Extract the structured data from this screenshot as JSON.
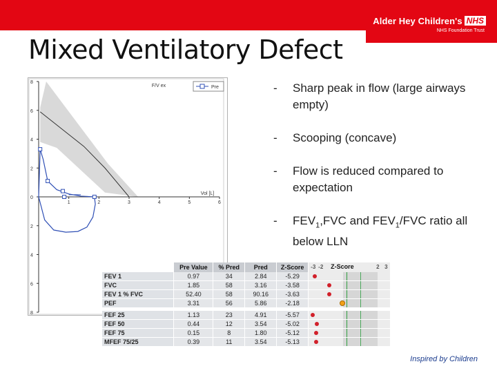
{
  "header": {
    "org_name": "Alder Hey Children's",
    "nhs_badge": "NHS",
    "org_sub": "NHS Foundation Trust"
  },
  "slide": {
    "title": "Mixed Ventilatory Defect"
  },
  "chart_data": {
    "type": "line",
    "title": "F/V ex",
    "xlabel": "Vol [L]",
    "legend": [
      "Pre"
    ],
    "xlim": [
      0,
      6
    ],
    "ylim": [
      -8,
      8
    ],
    "x_ticks": [
      "1",
      "2",
      "3",
      "4",
      "5",
      "6"
    ],
    "y_ticks": [
      "8",
      "6",
      "4",
      "2",
      "0",
      "2",
      "4",
      "6",
      "8"
    ],
    "series": [
      {
        "name": "Pre",
        "x": [
          0,
          0.05,
          0.15,
          0.3,
          0.6,
          1.0,
          1.4,
          1.85
        ],
        "y": [
          0,
          3.3,
          2.6,
          1.1,
          0.5,
          0.2,
          0.05,
          0
        ]
      }
    ]
  },
  "bullets": [
    {
      "dash": "-",
      "text": "Sharp peak in flow (large airways empty)"
    },
    {
      "dash": "-",
      "text": "Scooping (concave)"
    },
    {
      "dash": "-",
      "text": "Flow is reduced compared to expectation"
    },
    {
      "dash": "-",
      "text_a": "FEV",
      "sub_a": "1",
      "text_b": ",FVC and FEV",
      "sub_b": "1",
      "text_c": "/FVC ratio all below LLN"
    }
  ],
  "results": {
    "headers": [
      "",
      "Pre Value",
      "% Pred",
      "Pred",
      "Z-Score",
      "Z-Score"
    ],
    "z_ticks": [
      "-3",
      "-2",
      "2",
      "3"
    ],
    "group1": [
      {
        "name": "FEV 1",
        "pre": "0.97",
        "pct": "34",
        "pred": "2.84",
        "z": "-5.29",
        "zval": -5.29
      },
      {
        "name": "FVC",
        "pre": "1.85",
        "pct": "58",
        "pred": "3.16",
        "z": "-3.58",
        "zval": -3.58
      },
      {
        "name": "FEV 1 % FVC",
        "pre": "52.40",
        "pct": "58",
        "pred": "90.16",
        "z": "-3.63",
        "zval": -3.63
      },
      {
        "name": "PEF",
        "pre": "3.31",
        "pct": "56",
        "pred": "5.86",
        "z": "-2.18",
        "zval": -2.18
      }
    ],
    "group2": [
      {
        "name": "FEF 25",
        "pre": "1.13",
        "pct": "23",
        "pred": "4.91",
        "z": "-5.57",
        "zval": -5.57
      },
      {
        "name": "FEF 50",
        "pre": "0.44",
        "pct": "12",
        "pred": "3.54",
        "z": "-5.02",
        "zval": -5.02
      },
      {
        "name": "FEF 75",
        "pre": "0.15",
        "pct": "8",
        "pred": "1.80",
        "z": "-5.12",
        "zval": -5.12
      },
      {
        "name": "MFEF 75/25",
        "pre": "0.39",
        "pct": "11",
        "pred": "3.54",
        "z": "-5.13",
        "zval": -5.13
      }
    ]
  },
  "footer": {
    "tagline": "Inspired by Children"
  },
  "colors": {
    "brand_red": "#e30613",
    "curve_blue": "#2f4fb5",
    "pred_band": "#d9d9d9"
  }
}
